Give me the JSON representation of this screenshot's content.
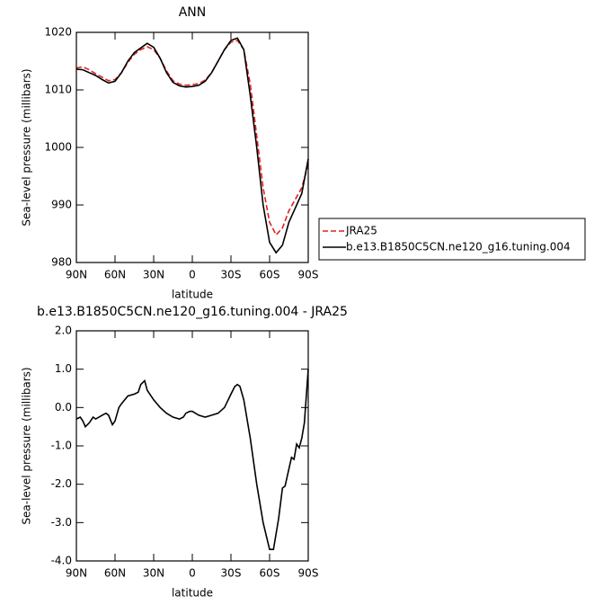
{
  "chart_data": [
    {
      "type": "line",
      "title": "ANN",
      "xlabel": "latitude",
      "ylabel": "Sea-level pressure (millibars)",
      "x": [
        90,
        85,
        80,
        75,
        70,
        65,
        60,
        55,
        50,
        45,
        40,
        35,
        30,
        25,
        20,
        15,
        10,
        5,
        0,
        -5,
        -10,
        -15,
        -20,
        -25,
        -30,
        -35,
        -40,
        -45,
        -50,
        -55,
        -60,
        -65,
        -70,
        -75,
        -80,
        -85,
        -90
      ],
      "series": [
        {
          "name": "JRA25",
          "color": "#e02020",
          "line_style": "dashed",
          "values": [
            1013.8,
            1014.0,
            1013.5,
            1012.8,
            1012.2,
            1011.6,
            1011.8,
            1013,
            1014.8,
            1016.2,
            1017,
            1017.5,
            1017.0,
            1015.5,
            1013.3,
            1011.6,
            1011,
            1010.8,
            1010.9,
            1011.1,
            1011.7,
            1013,
            1015,
            1017,
            1018.3,
            1018.6,
            1017,
            1011,
            1002,
            993,
            987,
            984.8,
            986,
            989,
            991,
            993,
            997
          ]
        },
        {
          "name": "b.e13.B1850C5CN.ne120_g16.tuning.004",
          "color": "#000000",
          "line_style": "solid",
          "values": [
            1013.6,
            1013.5,
            1013.0,
            1012.5,
            1011.8,
            1011.2,
            1011.5,
            1013,
            1015,
            1016.5,
            1017.3,
            1018.1,
            1017.4,
            1015.5,
            1013,
            1011.3,
            1010.7,
            1010.5,
            1010.6,
            1010.8,
            1011.5,
            1013,
            1015,
            1017,
            1018.6,
            1019,
            1017,
            1009,
            1000,
            990,
            983.5,
            981.7,
            983,
            987,
            989.5,
            992,
            998
          ]
        }
      ],
      "xlim": [
        90,
        -90
      ],
      "xticks": [
        {
          "value": 90,
          "label": "90N"
        },
        {
          "value": 60,
          "label": "60N"
        },
        {
          "value": 30,
          "label": "30N"
        },
        0,
        {
          "value": -30,
          "label": "30S"
        },
        {
          "value": -60,
          "label": "60S"
        },
        {
          "value": -90,
          "label": "90S"
        }
      ],
      "ylim": [
        980,
        1020
      ],
      "yticks": [
        980,
        990,
        1000,
        1010,
        1020
      ],
      "legend": "right"
    },
    {
      "type": "line",
      "title": "b.e13.B1850C5CN.ne120_g16.tuning.004 - JRA25",
      "xlabel": "latitude",
      "ylabel": "Sea-level pressure (millibars)",
      "x": [
        90,
        87,
        85,
        83,
        80,
        77,
        75,
        70,
        67,
        65,
        62,
        60,
        57,
        55,
        50,
        45,
        42,
        40,
        37,
        35,
        30,
        25,
        20,
        15,
        10,
        7,
        5,
        2,
        0,
        -5,
        -10,
        -15,
        -20,
        -25,
        -30,
        -33,
        -35,
        -37,
        -40,
        -45,
        -50,
        -55,
        -60,
        -63,
        -67,
        -70,
        -72,
        -75,
        -77,
        -79,
        -81,
        -83,
        -85,
        -87,
        -90
      ],
      "series": [
        {
          "color": "#000000",
          "line_style": "solid",
          "values": [
            -0.3,
            -0.25,
            -0.35,
            -0.5,
            -0.4,
            -0.25,
            -0.3,
            -0.2,
            -0.15,
            -0.2,
            -0.45,
            -0.35,
            0.0,
            0.1,
            0.3,
            0.35,
            0.4,
            0.6,
            0.7,
            0.45,
            0.2,
            0.0,
            -0.15,
            -0.25,
            -0.3,
            -0.25,
            -0.15,
            -0.1,
            -0.1,
            -0.2,
            -0.25,
            -0.2,
            -0.15,
            0.0,
            0.35,
            0.55,
            0.6,
            0.55,
            0.2,
            -0.8,
            -2.0,
            -3.0,
            -3.7,
            -3.7,
            -2.9,
            -2.1,
            -2.05,
            -1.6,
            -1.3,
            -1.35,
            -0.95,
            -1.05,
            -0.8,
            -0.4,
            1.0
          ]
        }
      ],
      "xlim": [
        90,
        -90
      ],
      "xticks": [
        {
          "value": 90,
          "label": "90N"
        },
        {
          "value": 60,
          "label": "60N"
        },
        {
          "value": 30,
          "label": "30N"
        },
        0,
        {
          "value": -30,
          "label": "30S"
        },
        {
          "value": -60,
          "label": "60S"
        },
        {
          "value": -90,
          "label": "90S"
        }
      ],
      "ylim": [
        -4,
        2
      ],
      "yticks": [
        {
          "value": -4,
          "label": "-4.0"
        },
        {
          "value": -3,
          "label": "-3.0"
        },
        {
          "value": -2,
          "label": "-2.0"
        },
        {
          "value": -1,
          "label": "-1.0"
        },
        {
          "value": 0,
          "label": "0.0"
        },
        {
          "value": 1,
          "label": "1.0"
        },
        {
          "value": 2,
          "label": "2.0"
        }
      ]
    }
  ]
}
